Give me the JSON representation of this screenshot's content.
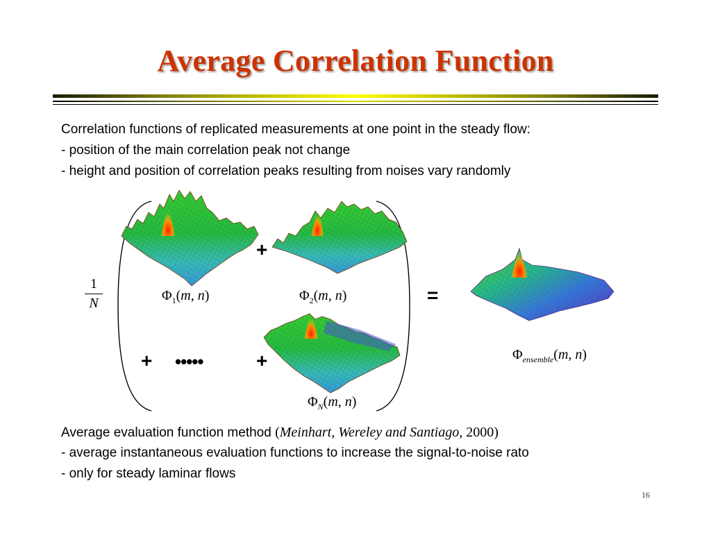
{
  "slide": {
    "title": "Average Correlation Function",
    "page_number": "16"
  },
  "intro": {
    "line1": "Correlation functions of replicated measurements at one point in the steady flow:",
    "line2": "- position of the main correlation peak not change",
    "line3": "- height and position of correlation peaks resulting from noises vary randomly"
  },
  "equation": {
    "fraction_numerator": "1",
    "fraction_denominator": "N",
    "phi": "Φ",
    "sub_1": "1",
    "sub_2": "2",
    "sub_N": "N",
    "sub_ensemble": "ensemble",
    "args_open": "(",
    "arg_m": "m",
    "args_comma": ", ",
    "arg_n": "n",
    "args_close": ")",
    "plus": "+",
    "equals": "=",
    "ellipsis_dots": "•••••"
  },
  "method": {
    "line1_text": "Average evaluation function method ",
    "ref_open": "(",
    "ref_authors": "Meinhart, Wereley and Santiago,",
    "ref_year": " 2000)",
    "line2": "- average instantaneous evaluation functions to increase the signal-to-noise rato",
    "line3": "- only for steady laminar flows"
  }
}
